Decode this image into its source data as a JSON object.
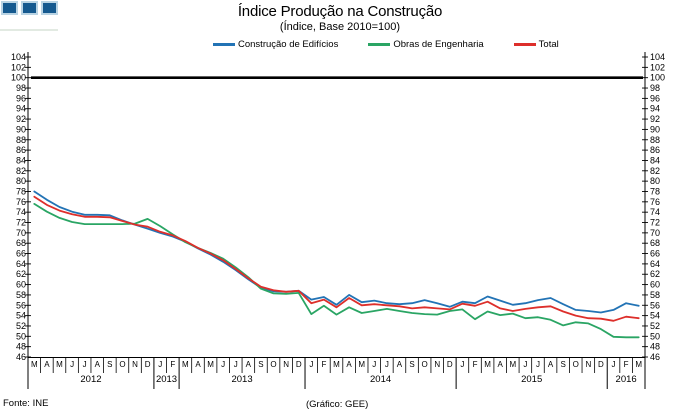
{
  "header": {
    "title": "Índice Produção na Construção",
    "subtitle": "(Índice, Base 2010=100)"
  },
  "footer": {
    "source": "Fonte: INE",
    "credit": "(Gráfico: GEE)"
  },
  "logo": {
    "square_color": "#15598f",
    "square_border_color": "#b9d3e3",
    "square_count": 3
  },
  "chart_data": {
    "type": "line",
    "title": "Índice Produção na Construção",
    "subtitle": "(Índice, Base 2010=100)",
    "ylabel": "",
    "xlabel": "",
    "ylim": [
      46,
      104
    ],
    "ytick_step": 2,
    "grid": false,
    "legend_position": "top",
    "reference_line": 100,
    "reference_line_color": "#000000",
    "x_groups": [
      {
        "year": "2012",
        "months": [
          "M",
          "A",
          "M",
          "J",
          "J",
          "A",
          "S",
          "O",
          "N",
          "D"
        ]
      },
      {
        "year": "2013",
        "months": [
          "J",
          "F"
        ]
      },
      {
        "year": "2013",
        "months": [
          "M",
          "A",
          "M",
          "J",
          "J",
          "A",
          "S",
          "O",
          "N",
          "D"
        ]
      },
      {
        "year": "2014",
        "months": [
          "J",
          "F",
          "M",
          "A",
          "M",
          "J",
          "J",
          "A",
          "S",
          "O",
          "N",
          "D"
        ]
      },
      {
        "year": "2015",
        "months": [
          "J",
          "F",
          "M",
          "A",
          "M",
          "J",
          "J",
          "A",
          "S",
          "O",
          "N",
          "D"
        ]
      },
      {
        "year": "2016",
        "months": [
          "J",
          "F",
          "M"
        ]
      }
    ],
    "series": [
      {
        "name": "Construção de Edifícios",
        "color": "#2273b5",
        "values": [
          78.0,
          76.4,
          75.0,
          74.1,
          73.5,
          73.5,
          73.4,
          72.4,
          71.6,
          70.8,
          70.0,
          69.3,
          68.3,
          67.0,
          65.8,
          64.4,
          62.8,
          61.0,
          59.4,
          58.7,
          58.6,
          58.8,
          57.1,
          57.6,
          56.1,
          58.0,
          56.6,
          56.9,
          56.4,
          56.2,
          56.4,
          57.0,
          56.4,
          55.7,
          56.7,
          56.4,
          57.7,
          56.9,
          56.1,
          56.4,
          57.0,
          57.4,
          56.2,
          55.1,
          54.9,
          54.6,
          55.1,
          56.4,
          55.9
        ]
      },
      {
        "name": "Obras de Engenharia",
        "color": "#2aa564",
        "values": [
          75.6,
          74.1,
          72.9,
          72.1,
          71.7,
          71.7,
          71.7,
          71.7,
          71.8,
          72.7,
          71.3,
          69.7,
          68.2,
          67.1,
          66.1,
          65.0,
          63.3,
          61.4,
          59.2,
          58.3,
          58.2,
          58.4,
          54.3,
          55.9,
          54.2,
          55.6,
          54.5,
          54.9,
          55.3,
          54.9,
          54.5,
          54.3,
          54.2,
          54.9,
          55.2,
          53.3,
          54.8,
          54.1,
          54.4,
          53.5,
          53.7,
          53.2,
          52.1,
          52.7,
          52.5,
          51.4,
          49.9,
          49.8,
          49.8
        ]
      },
      {
        "name": "Total",
        "color": "#dd2f2b",
        "values": [
          77.0,
          75.4,
          74.3,
          73.6,
          73.1,
          73.1,
          73.0,
          72.3,
          71.6,
          71.2,
          70.2,
          69.5,
          68.4,
          67.1,
          66.0,
          64.7,
          63.0,
          61.2,
          59.6,
          58.9,
          58.6,
          58.8,
          56.4,
          57.1,
          55.6,
          57.4,
          56.0,
          56.2,
          56.0,
          55.8,
          55.4,
          55.6,
          55.4,
          55.2,
          56.3,
          55.9,
          56.7,
          55.4,
          54.9,
          55.3,
          55.6,
          55.8,
          54.8,
          54.0,
          53.5,
          53.4,
          53.0,
          53.8,
          53.5
        ]
      }
    ]
  }
}
